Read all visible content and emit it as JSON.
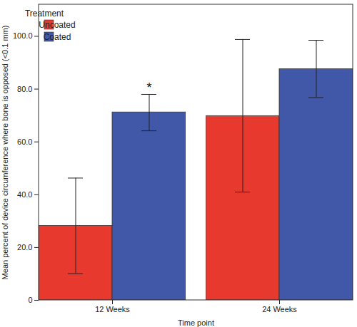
{
  "chart_data": {
    "type": "bar",
    "y_label": "Mean percent of device circumference where bone is opposed (<0.1 mm)",
    "x_label": "Time point",
    "categories": [
      "12 Weeks",
      "24 Weeks"
    ],
    "series": [
      {
        "name": "Uncoated",
        "color": "#e8392f",
        "values": [
          28.2,
          69.8
        ],
        "error_low": [
          10.1,
          41.0
        ],
        "error_high": [
          46.3,
          98.8
        ]
      },
      {
        "name": "Coated",
        "color": "#4157a8",
        "values": [
          71.2,
          87.6
        ],
        "error_low": [
          64.2,
          76.8
        ],
        "error_high": [
          78.0,
          98.5
        ]
      }
    ],
    "legend": "top-left",
    "legend_title": "Treatment",
    "ylim": [
      0,
      112
    ],
    "yticks": [
      0,
      {
        "value": 20,
        "label": "20.0"
      },
      {
        "value": 40,
        "label": "40.0"
      },
      {
        "value": 60,
        "label": "60.0"
      },
      {
        "value": 80,
        "label": "80.0"
      },
      {
        "value": 100,
        "label": "100.0"
      }
    ],
    "annotations": [
      {
        "text": "*",
        "category": "12 Weeks",
        "series": "Coated"
      }
    ],
    "grid": false
  }
}
